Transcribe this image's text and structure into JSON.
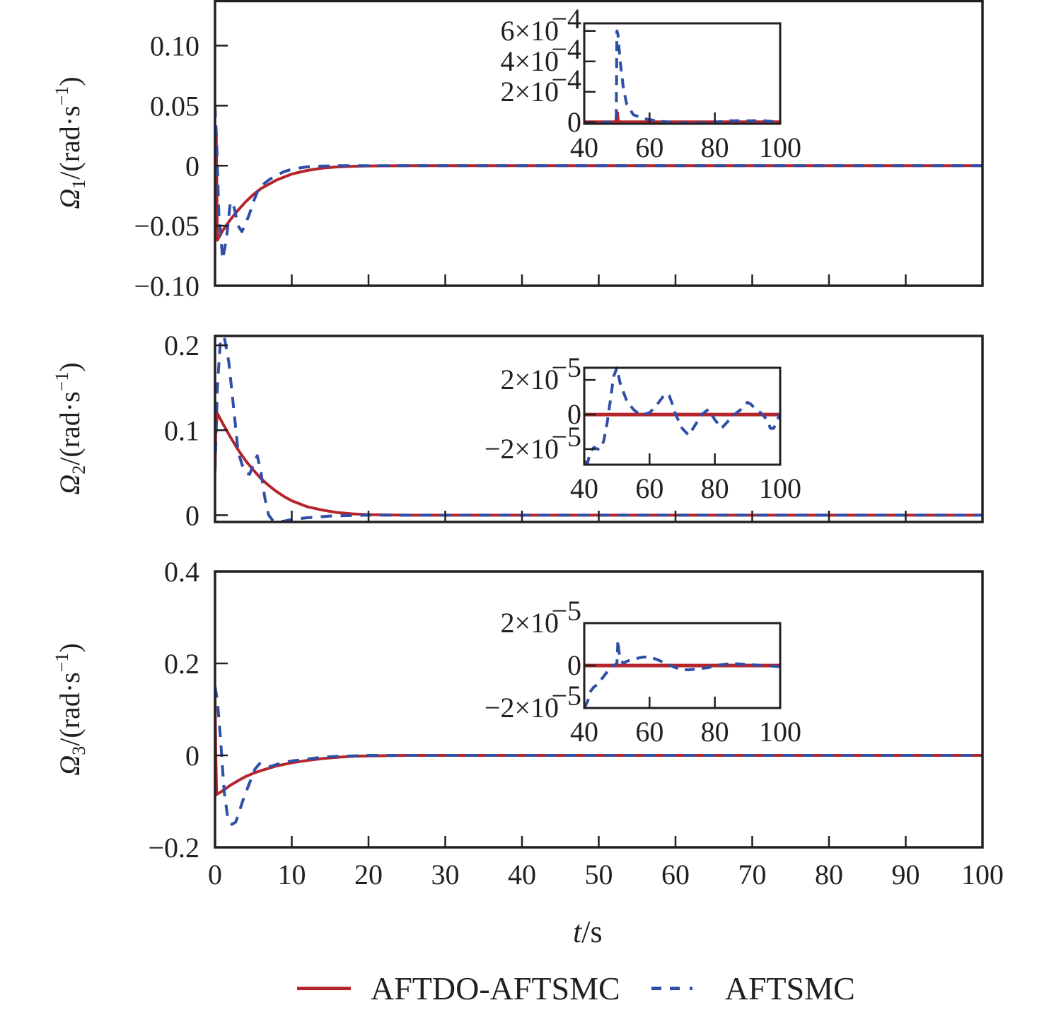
{
  "colors": {
    "series_a": "#b5252b",
    "series_b": "#2f4ea8",
    "axis": "#231f20"
  },
  "legend": {
    "placement": "bottom-center",
    "items": [
      {
        "label": "AFTDO-AFTSMC",
        "style": "solid",
        "color": "#b5252b"
      },
      {
        "label": "AFTSMC",
        "style": "dashed",
        "color": "#2f4ea8"
      }
    ]
  },
  "x_axis_title": {
    "italic": "t",
    "rest": "/s"
  },
  "chart_data": [
    {
      "type": "line",
      "ylabel": {
        "symbol": "Ω",
        "sub": "1",
        "unit": "/(rad·s",
        "sup": "−1",
        "close": ")"
      },
      "xlim": [
        0,
        100
      ],
      "ylim": [
        -0.1,
        0.138
      ],
      "x_ticks": [
        0,
        10,
        20,
        30,
        40,
        50,
        60,
        70,
        80,
        90,
        100
      ],
      "y_ticks": [
        {
          "v": 0.1,
          "label": "0.10"
        },
        {
          "v": 0.05,
          "label": "0.05"
        },
        {
          "v": 0,
          "label": "0"
        },
        {
          "v": -0.05,
          "label": "−0.05"
        },
        {
          "v": -0.1,
          "label": "−0.10"
        }
      ],
      "series": [
        {
          "name": "AFTDO-AFTSMC",
          "x": [
            0,
            0.15,
            0.3,
            1,
            2,
            3,
            4,
            5,
            6,
            8,
            10,
            12,
            14,
            16,
            18,
            20,
            25,
            100
          ],
          "y": [
            0,
            0.03,
            -0.062,
            -0.054,
            -0.045,
            -0.037,
            -0.03,
            -0.024,
            -0.019,
            -0.012,
            -0.007,
            -0.004,
            -0.002,
            -0.001,
            -0.0005,
            -0.0002,
            0,
            0
          ]
        },
        {
          "name": "AFTSMC",
          "x": [
            0,
            0.2,
            0.5,
            1,
            1.5,
            2,
            2.5,
            3,
            3.5,
            4,
            4.5,
            5,
            5.5,
            6,
            7,
            8,
            9,
            10,
            12,
            14,
            16,
            18,
            20,
            100
          ],
          "y": [
            0.05,
            0.02,
            -0.04,
            -0.078,
            -0.06,
            -0.03,
            -0.035,
            -0.05,
            -0.055,
            -0.048,
            -0.04,
            -0.03,
            -0.022,
            -0.017,
            -0.012,
            -0.008,
            -0.005,
            -0.003,
            -0.001,
            -0.0003,
            0,
            0,
            0,
            0
          ]
        }
      ],
      "inset": {
        "xlim": [
          40,
          100
        ],
        "ylim": [
          -1e-05,
          0.00065
        ],
        "x_ticks": [
          40,
          60,
          80,
          100
        ],
        "y_ticks": [
          {
            "v": 0.0006,
            "label": "6×10",
            "exp": "−4"
          },
          {
            "v": 0.0004,
            "label": "4×10",
            "exp": "−4"
          },
          {
            "v": 0.0002,
            "label": "2×10",
            "exp": "−4"
          },
          {
            "v": 0,
            "label": "0",
            "exp": ""
          }
        ],
        "series": [
          {
            "name": "AFTDO-AFTSMC",
            "x": [
              40,
              49.8,
              50,
              50.1,
              50.3,
              100
            ],
            "y": [
              0,
              0,
              6e-05,
              6e-05,
              0,
              0
            ]
          },
          {
            "name": "AFTSMC",
            "x": [
              40,
              48,
              49.8,
              50,
              50.3,
              51,
              52,
              53,
              55,
              58,
              62,
              66,
              70,
              75,
              80,
              85,
              90,
              95,
              100
            ],
            "y": [
              -5e-06,
              0,
              1e-05,
              0.0006,
              0.00058,
              0.0004,
              0.00022,
              0.00012,
              5e-05,
              2.5e-05,
              1e-05,
              0,
              -5e-06,
              -5e-06,
              0,
              1e-05,
              1e-05,
              1e-05,
              0
            ]
          }
        ]
      }
    },
    {
      "type": "line",
      "ylabel": {
        "symbol": "Ω",
        "sub": "2",
        "unit": "/(rad·s",
        "sup": "−1",
        "close": ")"
      },
      "xlim": [
        0,
        100
      ],
      "ylim": [
        -0.008,
        0.211
      ],
      "x_ticks": [
        0,
        10,
        20,
        30,
        40,
        50,
        60,
        70,
        80,
        90,
        100
      ],
      "y_ticks": [
        {
          "v": 0.2,
          "label": "0.2"
        },
        {
          "v": 0.1,
          "label": "0.1"
        },
        {
          "v": 0,
          "label": "0"
        }
      ],
      "series": [
        {
          "name": "AFTDO-AFTSMC",
          "x": [
            0,
            0.1,
            0.3,
            1,
            2,
            3,
            4,
            5,
            6,
            7,
            8,
            9,
            10,
            12,
            14,
            16,
            18,
            20,
            25,
            100
          ],
          "y": [
            0.05,
            0.1,
            0.12,
            0.108,
            0.092,
            0.077,
            0.064,
            0.053,
            0.043,
            0.035,
            0.028,
            0.022,
            0.017,
            0.01,
            0.006,
            0.003,
            0.0015,
            0.0007,
            0,
            0
          ]
        },
        {
          "name": "AFTSMC",
          "x": [
            0,
            0.3,
            0.7,
            1.2,
            1.8,
            2.5,
            3,
            3.5,
            4,
            4.5,
            5,
            5.5,
            6,
            6.5,
            7,
            7.5,
            8,
            9,
            10,
            12,
            15,
            20,
            100
          ],
          "y": [
            0.05,
            0.15,
            0.205,
            0.21,
            0.18,
            0.12,
            0.075,
            0.06,
            0.05,
            0.048,
            0.06,
            0.07,
            0.05,
            0.02,
            0,
            -0.006,
            -0.008,
            -0.007,
            -0.005,
            -0.003,
            -0.001,
            0,
            0
          ]
        }
      ],
      "inset": {
        "xlim": [
          40,
          100
        ],
        "ylim": [
          -2.9e-05,
          2.7e-05
        ],
        "x_ticks": [
          40,
          60,
          80,
          100
        ],
        "y_ticks": [
          {
            "v": 2e-05,
            "label": "2×10",
            "exp": "−5"
          },
          {
            "v": 0,
            "label": "0",
            "exp": ""
          },
          {
            "v": -2e-05,
            "label": "−2×10",
            "exp": "−5"
          }
        ],
        "series": [
          {
            "name": "AFTDO-AFTSMC",
            "x": [
              40,
              100
            ],
            "y": [
              0,
              0
            ]
          },
          {
            "name": "AFTSMC",
            "x": [
              40,
              41,
              42,
              43,
              44,
              45,
              46,
              47,
              48,
              49,
              50,
              51,
              52,
              53,
              55,
              57,
              58,
              60,
              62,
              64,
              65,
              66,
              67,
              68,
              70,
              72,
              74,
              76,
              78,
              80,
              82,
              84,
              86,
              88,
              90,
              91,
              92,
              94,
              96,
              97,
              98,
              99,
              100
            ],
            "y": [
              -2.7e-05,
              -2.8e-05,
              -2.1e-05,
              -1.9e-05,
              -2e-05,
              -2e-05,
              -1.5e-05,
              -5e-06,
              8e-06,
              2.2e-05,
              2.7e-05,
              1.8e-05,
              1.3e-05,
              8e-06,
              3e-06,
              0,
              0,
              1e-06,
              5e-06,
              1e-05,
              1.2e-05,
              1.1e-05,
              6e-06,
              0,
              -8e-06,
              -1.2e-05,
              -6e-06,
              0,
              3e-06,
              -3e-06,
              -8e-06,
              -4e-06,
              0,
              3e-06,
              7e-06,
              6e-06,
              4e-06,
              1e-06,
              -3e-06,
              -8e-06,
              -8e-06,
              -4e-06,
              1e-06
            ]
          }
        ]
      }
    },
    {
      "type": "line",
      "ylabel": {
        "symbol": "Ω",
        "sub": "3",
        "unit": "/(rad·s",
        "sup": "−1",
        "close": ")"
      },
      "xlim": [
        0,
        100
      ],
      "ylim": [
        -0.2,
        0.4
      ],
      "xlabel_ticks_shown": true,
      "x_ticks": [
        0,
        10,
        20,
        30,
        40,
        50,
        60,
        70,
        80,
        90,
        100
      ],
      "y_ticks": [
        {
          "v": 0.4,
          "label": "0.4"
        },
        {
          "v": 0.2,
          "label": "0.2"
        },
        {
          "v": 0,
          "label": "0"
        },
        {
          "v": -0.2,
          "label": "−0.2"
        }
      ],
      "series": [
        {
          "name": "AFTDO-AFTSMC",
          "x": [
            0,
            0.1,
            0.2,
            1,
            2,
            3,
            4,
            5,
            6,
            8,
            10,
            12,
            14,
            16,
            18,
            20,
            25,
            100
          ],
          "y": [
            0.13,
            0.0,
            -0.085,
            -0.077,
            -0.065,
            -0.055,
            -0.046,
            -0.039,
            -0.033,
            -0.023,
            -0.016,
            -0.011,
            -0.007,
            -0.004,
            -0.002,
            -0.001,
            0,
            0
          ]
        },
        {
          "name": "AFTSMC",
          "x": [
            0,
            0.3,
            0.7,
            1.2,
            1.7,
            2.2,
            2.7,
            3.2,
            3.8,
            4.5,
            5.2,
            5.8,
            6.3,
            7,
            8,
            9,
            10,
            12,
            14,
            16,
            18,
            20,
            100
          ],
          "y": [
            0.15,
            0.12,
            0.04,
            -0.08,
            -0.14,
            -0.15,
            -0.145,
            -0.12,
            -0.09,
            -0.06,
            -0.03,
            -0.018,
            -0.02,
            -0.025,
            -0.02,
            -0.015,
            -0.012,
            -0.008,
            -0.004,
            -0.002,
            -0.001,
            0,
            0
          ]
        }
      ],
      "inset": {
        "xlim": [
          40,
          100
        ],
        "ylim": [
          -2e-05,
          2e-05
        ],
        "x_ticks": [
          40,
          60,
          80,
          100
        ],
        "y_ticks": [
          {
            "v": 2e-05,
            "label": "2×10",
            "exp": "−5"
          },
          {
            "v": 0,
            "label": "0",
            "exp": ""
          },
          {
            "v": -2e-05,
            "label": "−2×10",
            "exp": "−5"
          }
        ],
        "series": [
          {
            "name": "AFTDO-AFTSMC",
            "x": [
              40,
              100
            ],
            "y": [
              0,
              0
            ]
          },
          {
            "name": "AFTSMC",
            "x": [
              40,
              41,
              42,
              43,
              44,
              45,
              46,
              47,
              48,
              49,
              50,
              50.3,
              50.6,
              51,
              52,
              53,
              55,
              58,
              60,
              62,
              65,
              68,
              70,
              72,
              75,
              78,
              80,
              85,
              90,
              95,
              100
            ],
            "y": [
              -2e-05,
              -1.7e-05,
              -1.2e-05,
              -1e-05,
              -9e-06,
              -7e-06,
              -5e-06,
              -3e-06,
              -1e-06,
              0,
              1e-06,
              1.2e-05,
              7e-06,
              3e-06,
              1e-06,
              2e-06,
              3e-06,
              4e-06,
              4e-06,
              3e-06,
              1e-06,
              -1e-06,
              -2e-06,
              -2e-06,
              -1.5e-06,
              -1e-06,
              0,
              1e-06,
              5e-07,
              0,
              -5e-07
            ]
          }
        ]
      }
    }
  ]
}
